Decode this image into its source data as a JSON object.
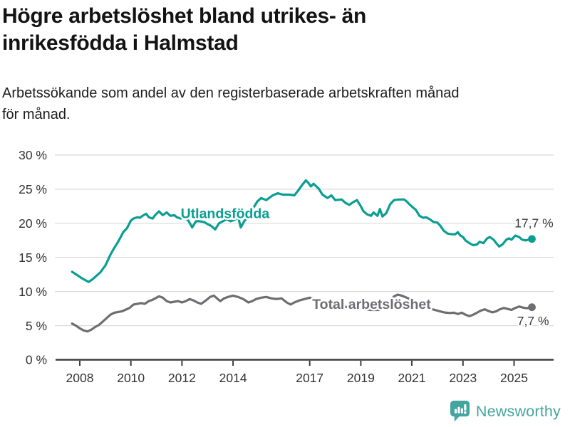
{
  "header": {
    "title": "Högre arbetslöshet bland utrikes- än\ninrikesfödda i Halmstad",
    "subtitle": "Arbetssökande som andel av den registerbaserade arbetskraften månad\nför månad."
  },
  "footer": {
    "brand": "Newsworthy",
    "logo_icon": "speech-bubble-bar-chart",
    "brand_color": "#43a59f"
  },
  "colors": {
    "utlandsfodda": "#0a9e93",
    "total": "#6d6d72",
    "axis": "#3d3d3d",
    "gridline": "#dadada",
    "tick_label": "#333333",
    "end_label": "#3a3a3a"
  },
  "chart_data": {
    "type": "line",
    "title": "Högre arbetslöshet bland utrikes- än inrikesfödda i Halmstad",
    "subtitle": "Arbetssökande som andel av den registerbaserade arbetskraften månad för månad.",
    "unit": "%",
    "grid": true,
    "ylim": [
      0,
      30
    ],
    "xlim": [
      2007.0,
      2026.5
    ],
    "y_ticks": [
      0,
      5,
      10,
      15,
      20,
      25,
      30
    ],
    "y_tick_suffix": " %",
    "x_ticks": [
      2008,
      2010,
      2012,
      2014,
      2017,
      2019,
      2021,
      2023,
      2025
    ],
    "series": [
      {
        "id": "utlandsfodda",
        "name": "Utlandsfödda",
        "color": "#0a9e93",
        "label_anchor": [
          2011.95,
          20.75
        ],
        "end_label": "17,7 %",
        "end_value": 17.7,
        "end_label_anchor": [
          2025.02,
          19.4
        ],
        "points": [
          [
            2007.7,
            12.9
          ],
          [
            2007.9,
            12.4
          ],
          [
            2008.1,
            11.9
          ],
          [
            2008.35,
            11.4
          ],
          [
            2008.5,
            11.8
          ],
          [
            2008.65,
            12.3
          ],
          [
            2008.8,
            12.8
          ],
          [
            2009.0,
            13.8
          ],
          [
            2009.1,
            14.6
          ],
          [
            2009.2,
            15.4
          ],
          [
            2009.35,
            16.4
          ],
          [
            2009.5,
            17.3
          ],
          [
            2009.6,
            18.0
          ],
          [
            2009.7,
            18.7
          ],
          [
            2009.85,
            19.3
          ],
          [
            2010.0,
            20.4
          ],
          [
            2010.1,
            20.7
          ],
          [
            2010.25,
            20.9
          ],
          [
            2010.35,
            20.8
          ],
          [
            2010.5,
            21.2
          ],
          [
            2010.6,
            21.4
          ],
          [
            2010.7,
            20.9
          ],
          [
            2010.85,
            20.7
          ],
          [
            2010.95,
            21.2
          ],
          [
            2011.1,
            21.75
          ],
          [
            2011.25,
            21.2
          ],
          [
            2011.4,
            21.6
          ],
          [
            2011.55,
            21.1
          ],
          [
            2011.7,
            21.2
          ],
          [
            2011.8,
            20.9
          ],
          [
            2011.95,
            20.7
          ],
          [
            2012.1,
            20.9
          ],
          [
            2012.25,
            20.4
          ],
          [
            2012.4,
            19.4
          ],
          [
            2012.55,
            20.3
          ],
          [
            2012.7,
            20.3
          ],
          [
            2012.85,
            20.2
          ],
          [
            2013.0,
            19.9
          ],
          [
            2013.15,
            19.6
          ],
          [
            2013.3,
            19.1
          ],
          [
            2013.45,
            20.0
          ],
          [
            2013.6,
            20.3
          ],
          [
            2013.75,
            20.6
          ],
          [
            2013.9,
            20.3
          ],
          [
            2014.05,
            20.5
          ],
          [
            2014.2,
            20.9
          ],
          [
            2014.3,
            19.4
          ],
          [
            2014.45,
            20.4
          ],
          [
            2014.6,
            20.9
          ],
          [
            2014.75,
            22.0
          ],
          [
            2014.95,
            23.2
          ],
          [
            2015.1,
            23.7
          ],
          [
            2015.3,
            23.4
          ],
          [
            2015.55,
            24.1
          ],
          [
            2015.75,
            24.4
          ],
          [
            2015.95,
            24.2
          ],
          [
            2016.2,
            24.2
          ],
          [
            2016.4,
            24.1
          ],
          [
            2016.55,
            24.8
          ],
          [
            2016.7,
            25.6
          ],
          [
            2016.85,
            26.3
          ],
          [
            2016.95,
            25.9
          ],
          [
            2017.05,
            25.4
          ],
          [
            2017.15,
            25.8
          ],
          [
            2017.35,
            25.1
          ],
          [
            2017.5,
            24.2
          ],
          [
            2017.7,
            23.7
          ],
          [
            2017.85,
            24.1
          ],
          [
            2018.0,
            23.4
          ],
          [
            2018.25,
            23.5
          ],
          [
            2018.4,
            23.0
          ],
          [
            2018.55,
            22.7
          ],
          [
            2018.7,
            23.1
          ],
          [
            2018.85,
            23.4
          ],
          [
            2019.0,
            22.5
          ],
          [
            2019.1,
            21.8
          ],
          [
            2019.25,
            21.3
          ],
          [
            2019.4,
            21.1
          ],
          [
            2019.5,
            21.6
          ],
          [
            2019.65,
            21.1
          ],
          [
            2019.75,
            22.1
          ],
          [
            2019.85,
            21.0
          ],
          [
            2020.0,
            21.5
          ],
          [
            2020.15,
            22.8
          ],
          [
            2020.3,
            23.4
          ],
          [
            2020.5,
            23.5
          ],
          [
            2020.7,
            23.5
          ],
          [
            2020.8,
            23.2
          ],
          [
            2020.9,
            22.8
          ],
          [
            2021.05,
            22.3
          ],
          [
            2021.15,
            22.0
          ],
          [
            2021.3,
            21.1
          ],
          [
            2021.45,
            20.8
          ],
          [
            2021.55,
            20.9
          ],
          [
            2021.7,
            20.6
          ],
          [
            2021.85,
            20.2
          ],
          [
            2022.0,
            20.1
          ],
          [
            2022.1,
            19.7
          ],
          [
            2022.25,
            18.9
          ],
          [
            2022.4,
            18.5
          ],
          [
            2022.55,
            18.4
          ],
          [
            2022.7,
            18.4
          ],
          [
            2022.8,
            18.7
          ],
          [
            2022.9,
            18.2
          ],
          [
            2023.0,
            18.0
          ],
          [
            2023.1,
            17.5
          ],
          [
            2023.25,
            17.1
          ],
          [
            2023.4,
            16.8
          ],
          [
            2023.55,
            16.9
          ],
          [
            2023.65,
            17.3
          ],
          [
            2023.8,
            17.1
          ],
          [
            2023.95,
            17.8
          ],
          [
            2024.05,
            18.0
          ],
          [
            2024.2,
            17.6
          ],
          [
            2024.3,
            17.1
          ],
          [
            2024.42,
            16.6
          ],
          [
            2024.55,
            16.9
          ],
          [
            2024.7,
            17.6
          ],
          [
            2024.8,
            17.8
          ],
          [
            2024.9,
            17.6
          ],
          [
            2025.05,
            18.2
          ],
          [
            2025.2,
            18.0
          ],
          [
            2025.32,
            17.6
          ],
          [
            2025.45,
            17.5
          ],
          [
            2025.58,
            17.6
          ],
          [
            2025.7,
            17.7
          ]
        ]
      },
      {
        "id": "total-arbetsloshet",
        "name": "Total arbetslöshet",
        "color": "#6d6d72",
        "label_anchor": [
          2017.1,
          7.45
        ],
        "end_label": "7,7 %",
        "end_value": 7.7,
        "end_label_anchor": [
          2025.12,
          5.05
        ],
        "points": [
          [
            2007.7,
            5.3
          ],
          [
            2007.85,
            5.0
          ],
          [
            2008.0,
            4.6
          ],
          [
            2008.15,
            4.3
          ],
          [
            2008.3,
            4.15
          ],
          [
            2008.45,
            4.4
          ],
          [
            2008.6,
            4.8
          ],
          [
            2008.75,
            5.1
          ],
          [
            2008.9,
            5.6
          ],
          [
            2009.05,
            6.1
          ],
          [
            2009.2,
            6.6
          ],
          [
            2009.35,
            6.9
          ],
          [
            2009.5,
            7.0
          ],
          [
            2009.65,
            7.1
          ],
          [
            2009.8,
            7.35
          ],
          [
            2009.95,
            7.6
          ],
          [
            2010.1,
            8.1
          ],
          [
            2010.25,
            8.2
          ],
          [
            2010.4,
            8.3
          ],
          [
            2010.55,
            8.2
          ],
          [
            2010.7,
            8.6
          ],
          [
            2010.85,
            8.8
          ],
          [
            2011.0,
            9.1
          ],
          [
            2011.1,
            9.3
          ],
          [
            2011.25,
            9.1
          ],
          [
            2011.4,
            8.6
          ],
          [
            2011.55,
            8.4
          ],
          [
            2011.7,
            8.5
          ],
          [
            2011.85,
            8.6
          ],
          [
            2012.0,
            8.4
          ],
          [
            2012.15,
            8.6
          ],
          [
            2012.3,
            8.9
          ],
          [
            2012.45,
            8.7
          ],
          [
            2012.6,
            8.4
          ],
          [
            2012.75,
            8.2
          ],
          [
            2012.9,
            8.6
          ],
          [
            2013.0,
            8.9
          ],
          [
            2013.1,
            9.2
          ],
          [
            2013.25,
            9.4
          ],
          [
            2013.4,
            8.9
          ],
          [
            2013.5,
            8.6
          ],
          [
            2013.65,
            9.0
          ],
          [
            2013.8,
            9.2
          ],
          [
            2014.0,
            9.4
          ],
          [
            2014.2,
            9.2
          ],
          [
            2014.4,
            8.9
          ],
          [
            2014.6,
            8.4
          ],
          [
            2014.75,
            8.6
          ],
          [
            2014.9,
            8.9
          ],
          [
            2015.1,
            9.1
          ],
          [
            2015.3,
            9.2
          ],
          [
            2015.5,
            9.0
          ],
          [
            2015.7,
            8.9
          ],
          [
            2015.9,
            9.0
          ],
          [
            2016.1,
            8.4
          ],
          [
            2016.25,
            8.1
          ],
          [
            2016.4,
            8.4
          ],
          [
            2016.6,
            8.7
          ],
          [
            2016.8,
            8.9
          ],
          [
            2017.0,
            9.1
          ],
          [
            2017.3,
            8.8
          ],
          [
            2017.6,
            8.5
          ],
          [
            2017.9,
            8.2
          ],
          [
            2018.2,
            7.9
          ],
          [
            2018.5,
            7.7
          ],
          [
            2018.8,
            7.5
          ],
          [
            2019.1,
            7.4
          ],
          [
            2019.4,
            7.3
          ],
          [
            2019.7,
            7.3
          ],
          [
            2019.9,
            7.5
          ],
          [
            2020.1,
            8.3
          ],
          [
            2020.3,
            9.3
          ],
          [
            2020.45,
            9.55
          ],
          [
            2020.6,
            9.4
          ],
          [
            2020.8,
            9.1
          ],
          [
            2021.0,
            8.8
          ],
          [
            2021.2,
            8.4
          ],
          [
            2021.4,
            8.0
          ],
          [
            2021.6,
            7.7
          ],
          [
            2021.8,
            7.4
          ],
          [
            2022.0,
            7.2
          ],
          [
            2022.2,
            7.0
          ],
          [
            2022.35,
            6.9
          ],
          [
            2022.5,
            6.85
          ],
          [
            2022.65,
            6.9
          ],
          [
            2022.8,
            6.7
          ],
          [
            2022.95,
            6.9
          ],
          [
            2023.1,
            6.6
          ],
          [
            2023.25,
            6.4
          ],
          [
            2023.4,
            6.6
          ],
          [
            2023.55,
            6.9
          ],
          [
            2023.7,
            7.2
          ],
          [
            2023.85,
            7.4
          ],
          [
            2024.0,
            7.15
          ],
          [
            2024.15,
            6.95
          ],
          [
            2024.3,
            7.1
          ],
          [
            2024.45,
            7.4
          ],
          [
            2024.6,
            7.6
          ],
          [
            2024.75,
            7.45
          ],
          [
            2024.9,
            7.3
          ],
          [
            2025.05,
            7.6
          ],
          [
            2025.2,
            7.8
          ],
          [
            2025.35,
            7.65
          ],
          [
            2025.5,
            7.55
          ],
          [
            2025.7,
            7.7
          ]
        ]
      }
    ]
  }
}
